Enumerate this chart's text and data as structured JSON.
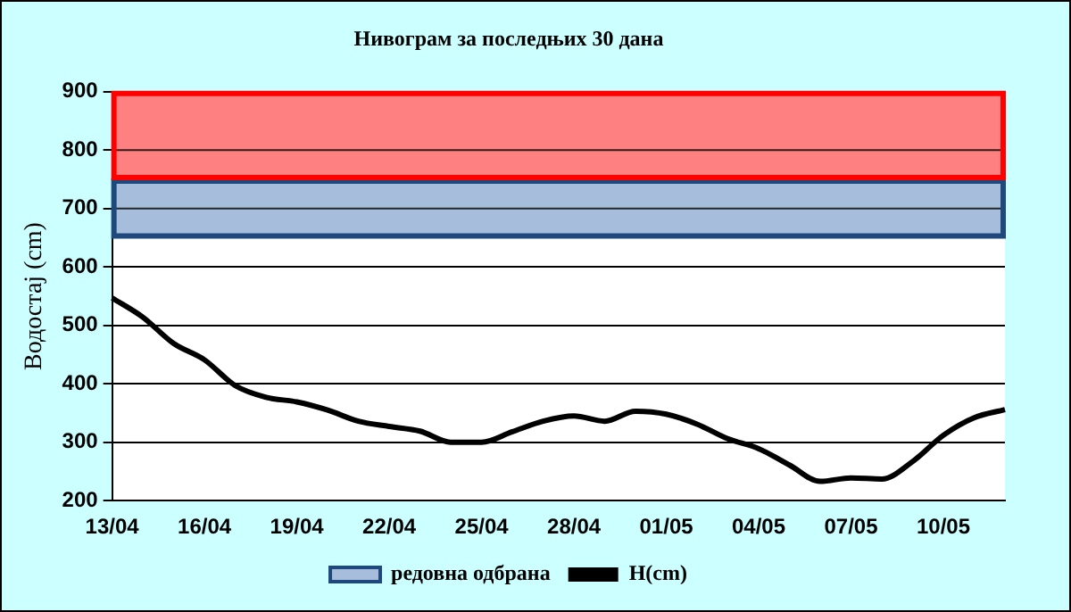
{
  "chart_data": {
    "type": "line",
    "title": "Нивограм за последњих 30 дана",
    "ylabel": "Водостај (cm)",
    "categories": [
      "13/04",
      null,
      null,
      "16/04",
      null,
      null,
      "19/04",
      null,
      null,
      "22/04",
      null,
      null,
      "25/04",
      null,
      null,
      "28/04",
      null,
      null,
      "01/05",
      null,
      null,
      "04/05",
      null,
      null,
      "07/05",
      null,
      null,
      "10/05",
      null,
      null
    ],
    "series": [
      {
        "name": "H(cm)",
        "color": "#000000",
        "values": [
          547,
          514,
          469,
          441,
          397,
          377,
          369,
          355,
          336,
          327,
          319,
          300,
          300,
          318,
          336,
          345,
          336,
          353,
          348,
          331,
          306,
          289,
          261,
          233,
          239,
          237,
          267,
          312,
          342,
          356
        ]
      }
    ],
    "ylim": [
      200,
      900
    ],
    "yticks": [
      200,
      300,
      400,
      500,
      600,
      700,
      800,
      900
    ],
    "bands": [
      {
        "axis": "y",
        "from": 650,
        "to": 750,
        "label": "редовна одбрана",
        "color": "#a6bddb"
      },
      {
        "axis": "y",
        "from": 750,
        "to": 900,
        "color": "#ff8080"
      }
    ],
    "grid": "y",
    "legend": "bottom",
    "marker": "none",
    "line_style": "solid"
  }
}
